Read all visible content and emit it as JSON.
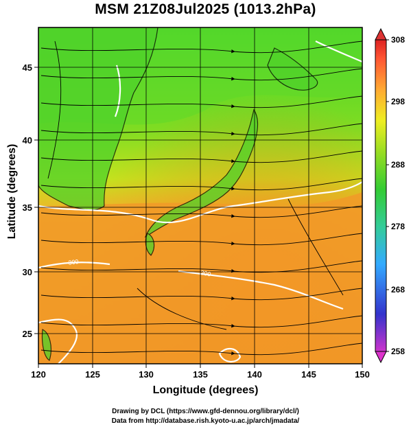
{
  "title": "MSM 21Z08Jul2025 (1013.2hPa)",
  "map": {
    "type": "temperature-wind-streamline-map",
    "xlabel": "Longitude (degrees)",
    "ylabel": "Latitude  (degrees)",
    "xlim": [
      120,
      150
    ],
    "ylim": [
      22.5,
      47.6
    ],
    "x_ticks": [
      "120",
      "125",
      "130",
      "135",
      "140",
      "145",
      "150"
    ],
    "y_ticks": [
      "25",
      "30",
      "35",
      "40",
      "45"
    ],
    "grid": true,
    "contour_labels": [
      "300",
      "300"
    ],
    "colors": {
      "cool": "#33d62c",
      "mid": "#a8e01e",
      "warm": "#f0a02a",
      "hot": "#f08a22",
      "contour": "#ffffff",
      "coast": "#000000"
    }
  },
  "colorbar": {
    "ticks": [
      "308",
      "298",
      "288",
      "278",
      "268",
      "258"
    ],
    "range": [
      258,
      308
    ],
    "stops": [
      "#cc33cc",
      "#3333cc",
      "#33aaff",
      "#33cc99",
      "#33cc33",
      "#99dd22",
      "#eeee22",
      "#ffaa33",
      "#ff5533",
      "#dd2222"
    ]
  },
  "credits": {
    "line1": "Drawing by DCL (https://www.gfd-dennou.org/library/dcl/)",
    "line2": "Data from http://database.rish.kyoto-u.ac.jp/arch/jmadata/"
  }
}
